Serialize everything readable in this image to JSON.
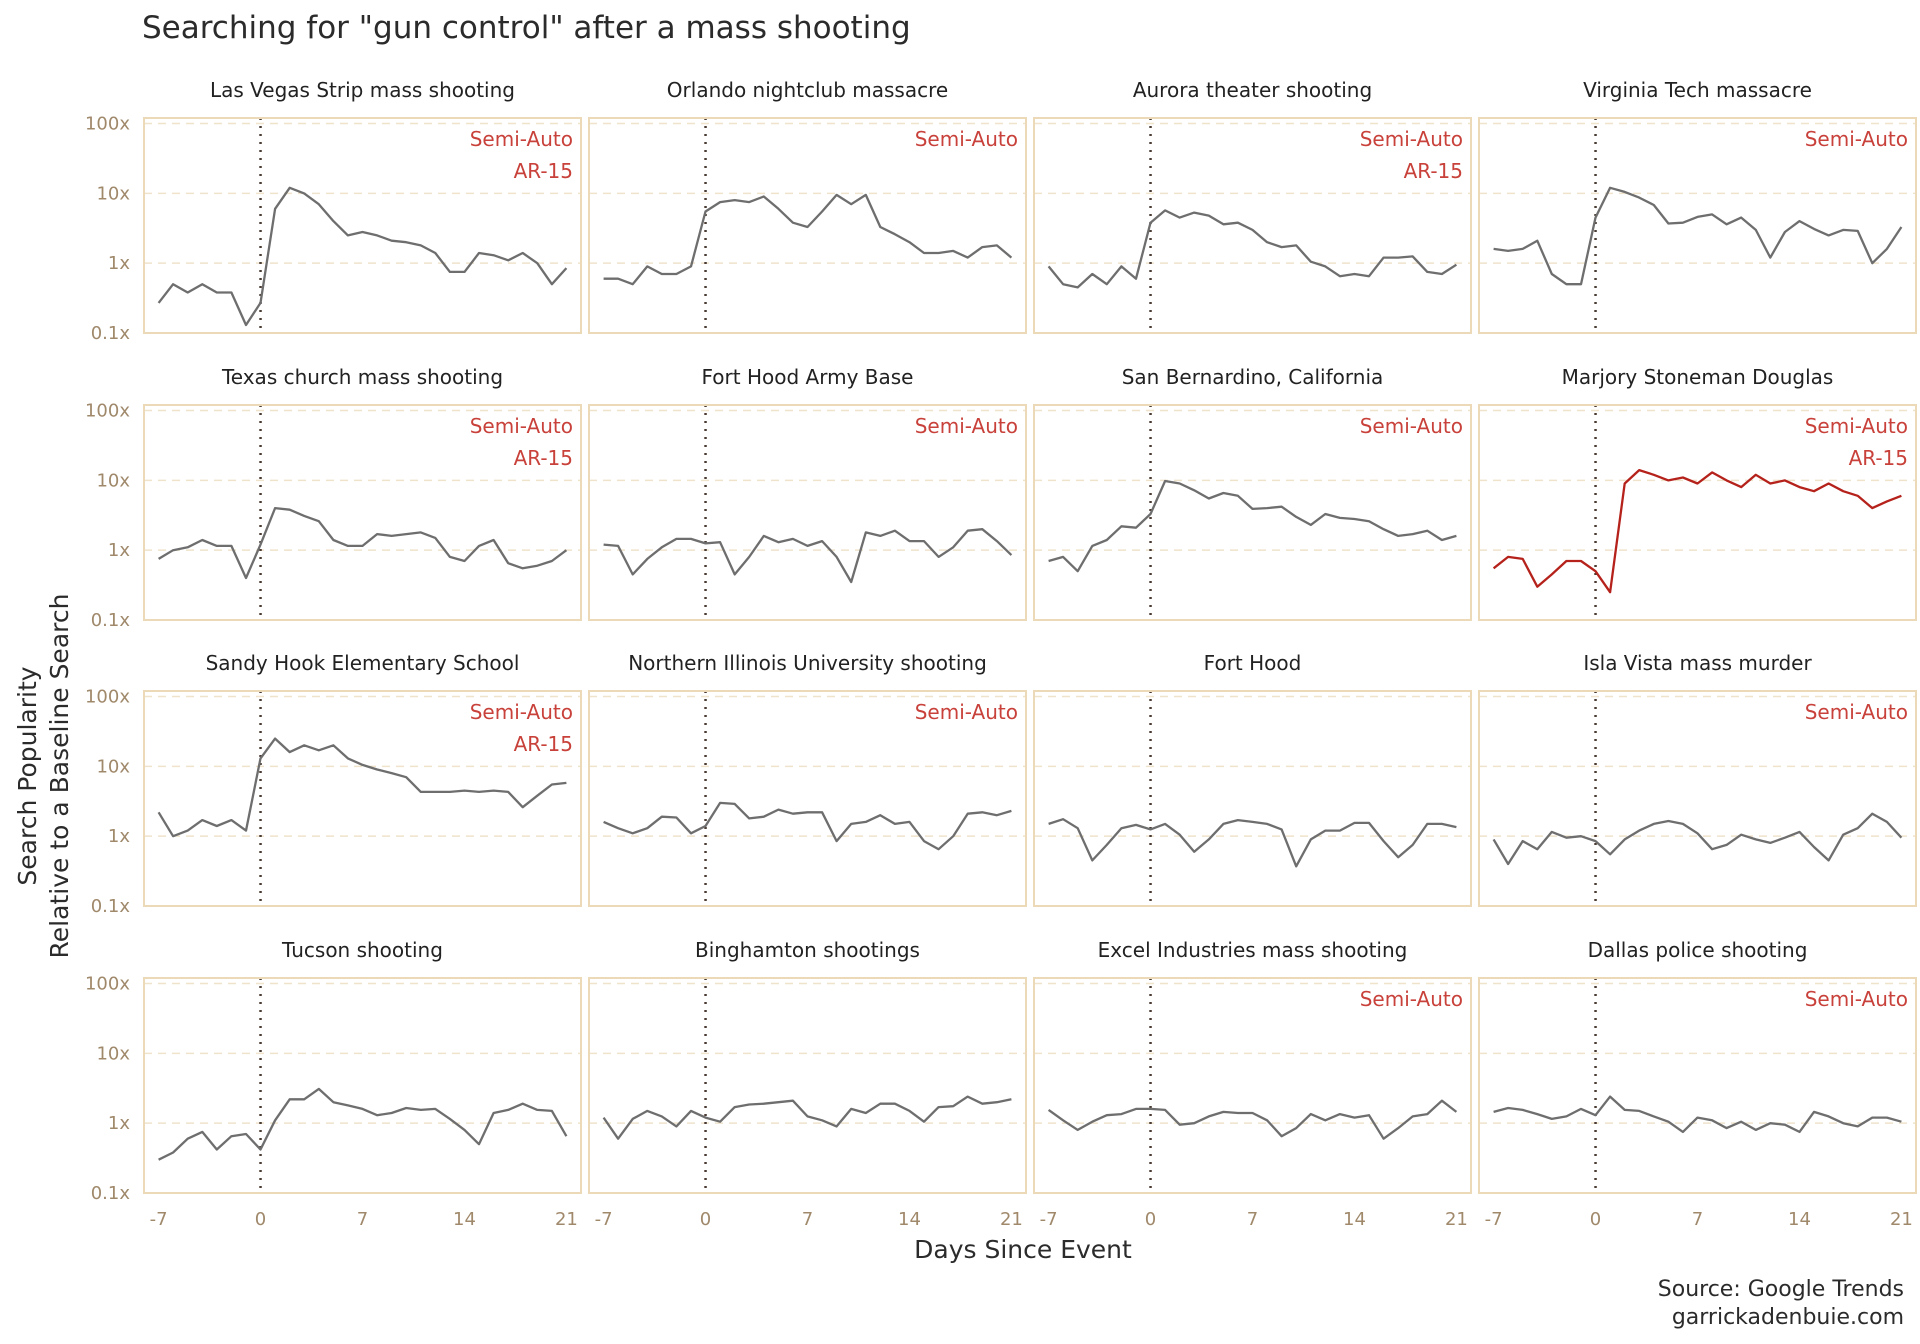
{
  "title": "Searching for \"gun control\" after a mass shooting",
  "caption": [
    "Source: Google Trends",
    "garrickadenbuie.com"
  ],
  "colors": {
    "series": "#6e6e6e",
    "highlight": "#b5221b",
    "annotation": "#c8413a",
    "border": "#ecd9b8",
    "tick": "#a0896b"
  },
  "chart_data": {
    "type": "line",
    "layout": "facet grid 4x4",
    "xlabel": "Days Since Event",
    "ylabel_lines": [
      "Search Popularity",
      "Relative to a Baseline Search"
    ],
    "x_ticks": [
      -7,
      0,
      7,
      14,
      21
    ],
    "x_tick_labels": [
      "-7",
      "0",
      "7",
      "14",
      "21"
    ],
    "xlim": [
      -8,
      22
    ],
    "y_scale": "log10",
    "y_ticks": [
      0.1,
      1,
      10,
      100
    ],
    "y_tick_labels": [
      "0.1x",
      "1x",
      "10x",
      "100x"
    ],
    "ylim": [
      0.1,
      120
    ],
    "event_marker_x": 0,
    "grid": "horizontal dashed",
    "panels": [
      {
        "name": "Las Vegas Strip mass shooting",
        "annotations": [
          "Semi-Auto",
          "AR-15"
        ],
        "highlight": false,
        "y": [
          0.27,
          0.5,
          0.38,
          0.5,
          0.38,
          0.38,
          0.13,
          0.27,
          6,
          12,
          10,
          7,
          4,
          2.5,
          2.8,
          2.5,
          2.1,
          2,
          1.8,
          1.4,
          0.75,
          0.75,
          1.4,
          1.3,
          1.1,
          1.4,
          1,
          0.5,
          0.85
        ]
      },
      {
        "name": "Orlando nightclub massacre",
        "annotations": [
          "Semi-Auto"
        ],
        "highlight": false,
        "y": [
          0.6,
          0.6,
          0.5,
          0.9,
          0.7,
          0.7,
          0.9,
          5.5,
          7.5,
          8,
          7.5,
          9,
          6,
          3.8,
          3.3,
          5.5,
          9.5,
          7,
          9.5,
          3.3,
          2.6,
          2,
          1.4,
          1.4,
          1.5,
          1.2,
          1.7,
          1.8,
          1.2
        ]
      },
      {
        "name": "Aurora theater shooting",
        "annotations": [
          "Semi-Auto",
          "AR-15"
        ],
        "highlight": false,
        "y": [
          0.9,
          0.5,
          0.45,
          0.7,
          0.5,
          0.9,
          0.6,
          3.8,
          5.7,
          4.5,
          5.3,
          4.8,
          3.6,
          3.8,
          3,
          2,
          1.7,
          1.8,
          1.05,
          0.9,
          0.65,
          0.7,
          0.65,
          1.2,
          1.2,
          1.25,
          0.75,
          0.7,
          0.95
        ]
      },
      {
        "name": "Virginia Tech massacre",
        "annotations": [
          "Semi-Auto"
        ],
        "highlight": false,
        "y": [
          1.6,
          1.5,
          1.6,
          2.1,
          0.7,
          0.5,
          0.5,
          4.5,
          12,
          10.5,
          8.7,
          6.8,
          3.7,
          3.8,
          4.6,
          5,
          3.6,
          4.5,
          3,
          1.2,
          2.8,
          4,
          3.1,
          2.5,
          3,
          2.9,
          1,
          1.6,
          3.3
        ]
      },
      {
        "name": "Texas church mass shooting",
        "annotations": [
          "Semi-Auto",
          "AR-15"
        ],
        "highlight": false,
        "y": [
          0.75,
          1,
          1.1,
          1.4,
          1.15,
          1.15,
          0.4,
          1.2,
          4,
          3.8,
          3.1,
          2.6,
          1.4,
          1.15,
          1.15,
          1.7,
          1.6,
          1.7,
          1.8,
          1.5,
          0.8,
          0.7,
          1.15,
          1.4,
          0.65,
          0.55,
          0.6,
          0.7,
          1
        ]
      },
      {
        "name": "Fort Hood Army Base",
        "annotations": [
          "Semi-Auto"
        ],
        "highlight": false,
        "y": [
          1.2,
          1.15,
          0.45,
          0.75,
          1.1,
          1.45,
          1.45,
          1.25,
          1.3,
          0.45,
          0.8,
          1.6,
          1.3,
          1.45,
          1.15,
          1.35,
          0.8,
          0.35,
          1.8,
          1.6,
          1.9,
          1.35,
          1.35,
          0.8,
          1.1,
          1.9,
          2,
          1.35,
          0.85
        ]
      },
      {
        "name": "San Bernardino, California",
        "annotations": [
          "Semi-Auto"
        ],
        "highlight": false,
        "y": [
          0.7,
          0.8,
          0.5,
          1.15,
          1.4,
          2.2,
          2.1,
          3.3,
          9.8,
          9,
          7.2,
          5.5,
          6.6,
          6,
          3.9,
          4,
          4.2,
          3,
          2.3,
          3.3,
          2.9,
          2.8,
          2.6,
          2,
          1.6,
          1.7,
          1.9,
          1.4,
          1.6
        ]
      },
      {
        "name": "Marjory Stoneman Douglas",
        "annotations": [
          "Semi-Auto",
          "AR-15"
        ],
        "highlight": true,
        "y": [
          0.55,
          0.8,
          0.75,
          0.3,
          0.45,
          0.7,
          0.7,
          0.5,
          0.25,
          9,
          14,
          12,
          10,
          11,
          9,
          13,
          10,
          8,
          12,
          9,
          10,
          8,
          7,
          9,
          7,
          6,
          4,
          5,
          6
        ]
      },
      {
        "name": "Sandy Hook Elementary School",
        "annotations": [
          "Semi-Auto",
          "AR-15"
        ],
        "highlight": false,
        "y": [
          2.2,
          1,
          1.2,
          1.7,
          1.4,
          1.7,
          1.2,
          13,
          25,
          16,
          20,
          17,
          20,
          13,
          10.5,
          9,
          8,
          7,
          4.3,
          4.3,
          4.3,
          4.5,
          4.3,
          4.5,
          4.3,
          2.6,
          3.8,
          5.5,
          5.8
        ]
      },
      {
        "name": "Northern Illinois University shooting",
        "annotations": [
          "Semi-Auto"
        ],
        "highlight": false,
        "y": [
          1.6,
          1.3,
          1.1,
          1.3,
          1.9,
          1.85,
          1.1,
          1.4,
          3,
          2.9,
          1.8,
          1.9,
          2.4,
          2.1,
          2.2,
          2.2,
          0.85,
          1.5,
          1.6,
          2,
          1.5,
          1.6,
          0.85,
          0.65,
          1,
          2.1,
          2.2,
          2,
          2.3
        ]
      },
      {
        "name": "Fort Hood",
        "annotations": [],
        "highlight": false,
        "y": [
          1.5,
          1.75,
          1.3,
          0.45,
          0.75,
          1.3,
          1.45,
          1.25,
          1.5,
          1.05,
          0.6,
          0.9,
          1.5,
          1.7,
          1.6,
          1.5,
          1.25,
          0.37,
          0.9,
          1.2,
          1.2,
          1.55,
          1.55,
          0.85,
          0.5,
          0.75,
          1.5,
          1.5,
          1.35
        ]
      },
      {
        "name": "Isla Vista mass murder",
        "annotations": [
          "Semi-Auto"
        ],
        "highlight": false,
        "y": [
          0.9,
          0.4,
          0.85,
          0.65,
          1.15,
          0.95,
          1,
          0.85,
          0.55,
          0.9,
          1.2,
          1.5,
          1.65,
          1.5,
          1.1,
          0.65,
          0.75,
          1.05,
          0.9,
          0.8,
          0.95,
          1.15,
          0.7,
          0.45,
          1.05,
          1.3,
          2.1,
          1.6,
          0.95
        ]
      },
      {
        "name": "Tucson shooting",
        "annotations": [],
        "highlight": false,
        "y": [
          0.3,
          0.38,
          0.6,
          0.75,
          0.42,
          0.65,
          0.7,
          0.42,
          1.1,
          2.2,
          2.2,
          3.1,
          2,
          1.8,
          1.6,
          1.3,
          1.4,
          1.65,
          1.55,
          1.6,
          1.15,
          0.8,
          0.5,
          1.4,
          1.55,
          1.9,
          1.55,
          1.5,
          0.65
        ]
      },
      {
        "name": "Binghamton shootings",
        "annotations": [],
        "highlight": false,
        "y": [
          1.2,
          0.6,
          1.15,
          1.5,
          1.25,
          0.9,
          1.5,
          1.2,
          1.05,
          1.7,
          1.85,
          1.9,
          2,
          2.1,
          1.25,
          1.1,
          0.9,
          1.6,
          1.4,
          1.9,
          1.9,
          1.5,
          1.05,
          1.7,
          1.75,
          2.4,
          1.9,
          2,
          2.2
        ]
      },
      {
        "name": "Excel Industries mass shooting",
        "annotations": [
          "Semi-Auto"
        ],
        "highlight": false,
        "y": [
          1.55,
          1.1,
          0.8,
          1.05,
          1.3,
          1.35,
          1.6,
          1.6,
          1.55,
          0.95,
          1,
          1.25,
          1.45,
          1.4,
          1.4,
          1.1,
          0.65,
          0.85,
          1.35,
          1.1,
          1.35,
          1.2,
          1.3,
          0.6,
          0.85,
          1.25,
          1.35,
          2.1,
          1.45
        ]
      },
      {
        "name": "Dallas police shooting",
        "annotations": [
          "Semi-Auto"
        ],
        "highlight": false,
        "y": [
          1.45,
          1.65,
          1.55,
          1.35,
          1.15,
          1.25,
          1.6,
          1.3,
          2.4,
          1.55,
          1.5,
          1.25,
          1.05,
          0.75,
          1.2,
          1.1,
          0.85,
          1.05,
          0.8,
          1,
          0.95,
          0.75,
          1.45,
          1.25,
          1,
          0.9,
          1.2,
          1.2,
          1.05
        ]
      }
    ]
  }
}
